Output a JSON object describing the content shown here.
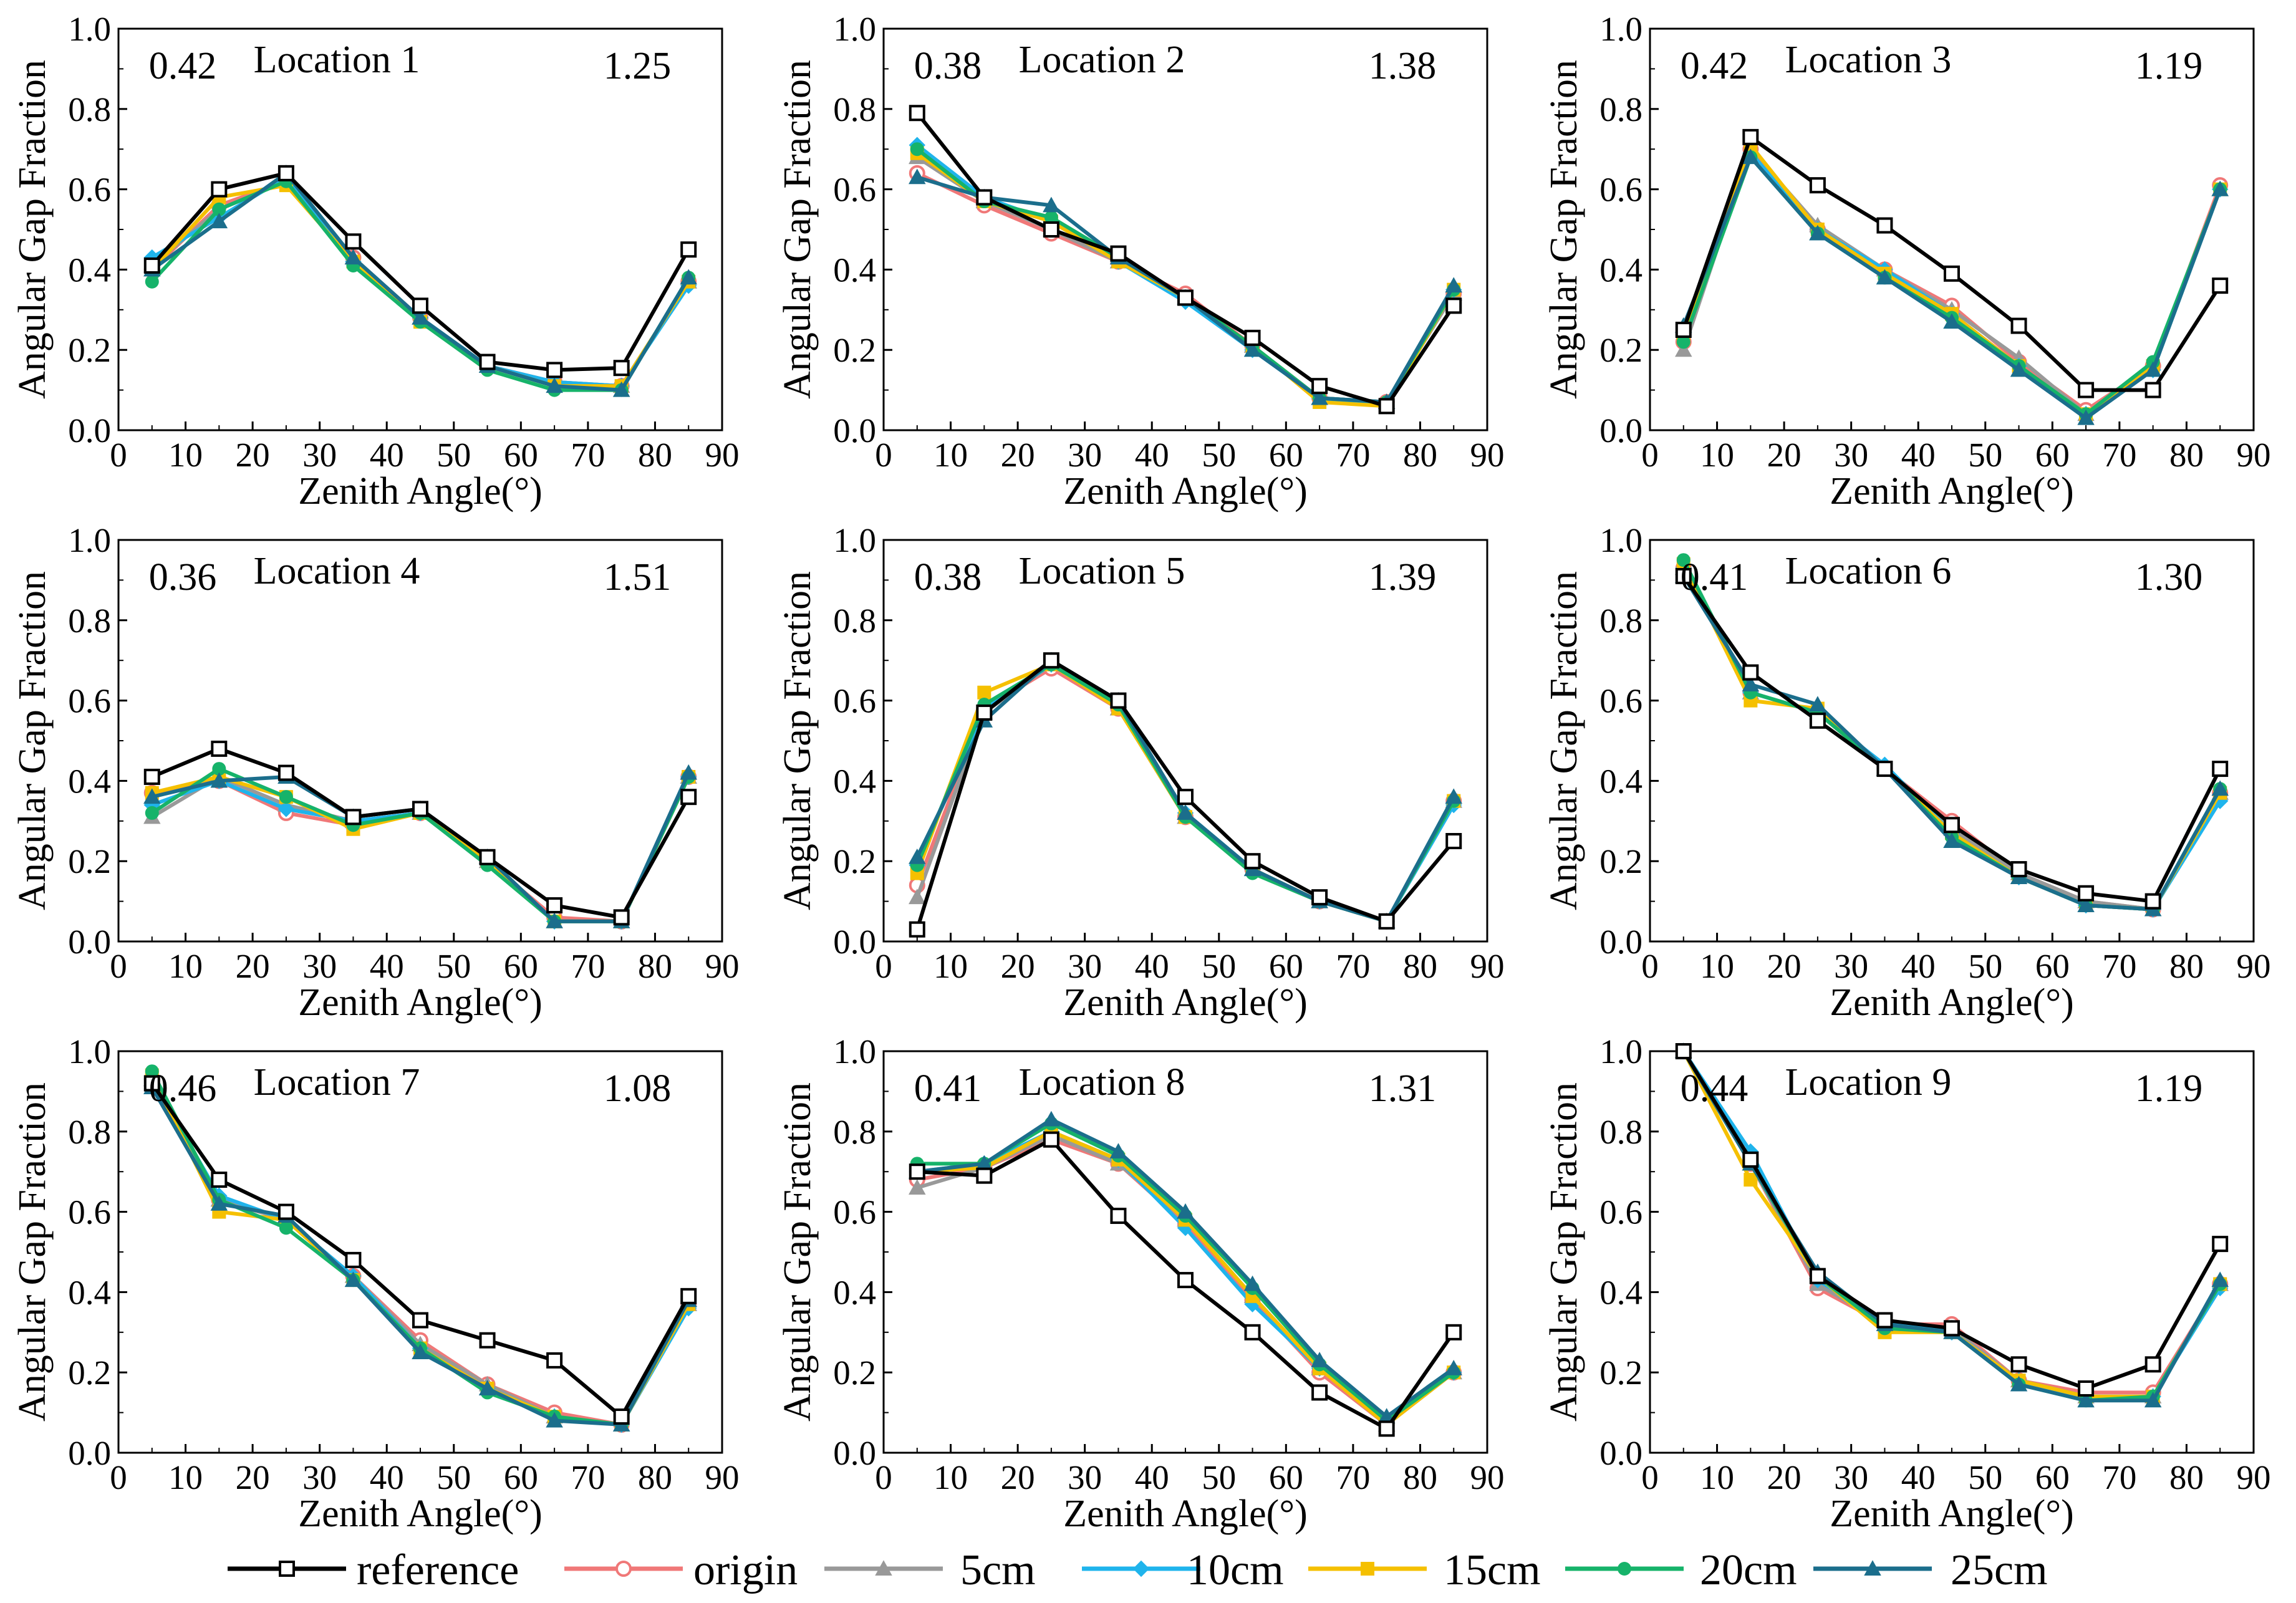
{
  "chart_data": {
    "type": "line",
    "x": [
      5,
      15,
      25,
      35,
      45,
      55,
      65,
      75,
      85
    ],
    "xlabel": "Zenith Angle(°)",
    "ylabel": "Angular Gap Fraction",
    "xlim": [
      0,
      90
    ],
    "ylim": [
      0,
      1.0
    ],
    "x_ticks": [
      "0",
      "10",
      "20",
      "30",
      "40",
      "50",
      "60",
      "70",
      "80",
      "90"
    ],
    "y_ticks": [
      "0.0",
      "0.2",
      "0.4",
      "0.6",
      "0.8",
      "1.0"
    ],
    "legend_position": "bottom",
    "series_styles": [
      {
        "name": "reference",
        "color": "#000000",
        "marker": "square-open"
      },
      {
        "name": "origin",
        "color": "#f07878",
        "marker": "circle-open"
      },
      {
        "name": "5cm",
        "color": "#999999",
        "marker": "triangle"
      },
      {
        "name": "10cm",
        "color": "#1fb4ec",
        "marker": "diamond"
      },
      {
        "name": "15cm",
        "color": "#f5c000",
        "marker": "square"
      },
      {
        "name": "20cm",
        "color": "#16b36a",
        "marker": "circle"
      },
      {
        "name": "25cm",
        "color": "#1b6e8c",
        "marker": "triangle"
      }
    ],
    "panels": [
      {
        "title": "Location 1",
        "left_value": "0.42",
        "right_value": "1.25",
        "series": [
          {
            "name": "reference",
            "values": [
              0.41,
              0.6,
              0.64,
              0.47,
              0.31,
              0.17,
              0.15,
              0.155,
              0.45
            ]
          },
          {
            "name": "origin",
            "values": [
              0.4,
              0.56,
              0.62,
              0.43,
              0.28,
              0.16,
              0.12,
              0.11,
              0.37
            ]
          },
          {
            "name": "5cm",
            "values": [
              0.41,
              0.55,
              0.62,
              0.43,
              0.28,
              0.16,
              0.12,
              0.11,
              0.37
            ]
          },
          {
            "name": "10cm",
            "values": [
              0.43,
              0.53,
              0.63,
              0.42,
              0.28,
              0.16,
              0.12,
              0.11,
              0.36
            ]
          },
          {
            "name": "15cm",
            "values": [
              0.4,
              0.58,
              0.61,
              0.42,
              0.27,
              0.16,
              0.11,
              0.11,
              0.37
            ]
          },
          {
            "name": "20cm",
            "values": [
              0.37,
              0.55,
              0.62,
              0.41,
              0.27,
              0.15,
              0.1,
              0.1,
              0.38
            ]
          },
          {
            "name": "25cm",
            "values": [
              0.4,
              0.52,
              0.64,
              0.43,
              0.28,
              0.16,
              0.11,
              0.1,
              0.38
            ]
          }
        ]
      },
      {
        "title": "Location 2",
        "left_value": "0.38",
        "right_value": "1.38",
        "series": [
          {
            "name": "reference",
            "values": [
              0.79,
              0.58,
              0.5,
              0.44,
              0.33,
              0.23,
              0.11,
              0.06,
              0.31
            ]
          },
          {
            "name": "origin",
            "values": [
              0.64,
              0.56,
              0.49,
              0.42,
              0.34,
              0.21,
              0.08,
              0.07,
              0.34
            ]
          },
          {
            "name": "5cm",
            "values": [
              0.68,
              0.57,
              0.5,
              0.42,
              0.33,
              0.21,
              0.08,
              0.07,
              0.34
            ]
          },
          {
            "name": "10cm",
            "values": [
              0.71,
              0.58,
              0.52,
              0.42,
              0.32,
              0.2,
              0.08,
              0.06,
              0.35
            ]
          },
          {
            "name": "15cm",
            "values": [
              0.69,
              0.57,
              0.52,
              0.42,
              0.33,
              0.21,
              0.07,
              0.06,
              0.35
            ]
          },
          {
            "name": "20cm",
            "values": [
              0.7,
              0.57,
              0.53,
              0.43,
              0.33,
              0.21,
              0.08,
              0.07,
              0.35
            ]
          },
          {
            "name": "25cm",
            "values": [
              0.63,
              0.58,
              0.56,
              0.43,
              0.33,
              0.2,
              0.08,
              0.07,
              0.36
            ]
          }
        ]
      },
      {
        "title": "Location 3",
        "left_value": "0.42",
        "right_value": "1.19",
        "series": [
          {
            "name": "reference",
            "values": [
              0.25,
              0.73,
              0.61,
              0.51,
              0.39,
              0.26,
              0.1,
              0.1,
              0.36
            ]
          },
          {
            "name": "origin",
            "values": [
              0.22,
              0.7,
              0.5,
              0.4,
              0.31,
              0.17,
              0.05,
              0.16,
              0.61
            ]
          },
          {
            "name": "5cm",
            "values": [
              0.2,
              0.7,
              0.51,
              0.4,
              0.3,
              0.18,
              0.04,
              0.15,
              0.6
            ]
          },
          {
            "name": "10cm",
            "values": [
              0.24,
              0.69,
              0.5,
              0.4,
              0.29,
              0.16,
              0.04,
              0.15,
              0.6
            ]
          },
          {
            "name": "15cm",
            "values": [
              0.23,
              0.71,
              0.5,
              0.39,
              0.29,
              0.16,
              0.04,
              0.16,
              0.6
            ]
          },
          {
            "name": "20cm",
            "values": [
              0.22,
              0.68,
              0.49,
              0.38,
              0.28,
              0.16,
              0.04,
              0.17,
              0.6
            ]
          },
          {
            "name": "25cm",
            "values": [
              0.26,
              0.68,
              0.49,
              0.38,
              0.27,
              0.15,
              0.03,
              0.15,
              0.6
            ]
          }
        ]
      },
      {
        "title": "Location 4",
        "left_value": "0.36",
        "right_value": "1.51",
        "series": [
          {
            "name": "reference",
            "values": [
              0.41,
              0.48,
              0.42,
              0.31,
              0.33,
              0.21,
              0.09,
              0.06,
              0.36
            ]
          },
          {
            "name": "origin",
            "values": [
              0.37,
              0.4,
              0.32,
              0.29,
              0.32,
              0.2,
              0.06,
              0.05,
              0.41
            ]
          },
          {
            "name": "5cm",
            "values": [
              0.31,
              0.41,
              0.34,
              0.3,
              0.32,
              0.2,
              0.05,
              0.05,
              0.41
            ]
          },
          {
            "name": "10cm",
            "values": [
              0.34,
              0.4,
              0.33,
              0.3,
              0.32,
              0.2,
              0.05,
              0.05,
              0.41
            ]
          },
          {
            "name": "15cm",
            "values": [
              0.37,
              0.41,
              0.36,
              0.28,
              0.32,
              0.2,
              0.05,
              0.05,
              0.41
            ]
          },
          {
            "name": "20cm",
            "values": [
              0.32,
              0.43,
              0.36,
              0.29,
              0.32,
              0.19,
              0.05,
              0.05,
              0.41
            ]
          },
          {
            "name": "25cm",
            "values": [
              0.36,
              0.4,
              0.41,
              0.31,
              0.33,
              0.21,
              0.05,
              0.05,
              0.42
            ]
          }
        ]
      },
      {
        "title": "Location 5",
        "left_value": "0.38",
        "right_value": "1.39",
        "series": [
          {
            "name": "reference",
            "values": [
              0.03,
              0.57,
              0.7,
              0.6,
              0.36,
              0.2,
              0.11,
              0.05,
              0.25
            ]
          },
          {
            "name": "origin",
            "values": [
              0.14,
              0.58,
              0.68,
              0.58,
              0.31,
              0.18,
              0.1,
              0.05,
              0.35
            ]
          },
          {
            "name": "5cm",
            "values": [
              0.11,
              0.57,
              0.69,
              0.58,
              0.31,
              0.18,
              0.1,
              0.05,
              0.35
            ]
          },
          {
            "name": "10cm",
            "values": [
              0.19,
              0.58,
              0.69,
              0.59,
              0.32,
              0.18,
              0.1,
              0.05,
              0.34
            ]
          },
          {
            "name": "15cm",
            "values": [
              0.17,
              0.62,
              0.69,
              0.58,
              0.31,
              0.18,
              0.1,
              0.05,
              0.35
            ]
          },
          {
            "name": "20cm",
            "values": [
              0.19,
              0.59,
              0.69,
              0.59,
              0.31,
              0.17,
              0.1,
              0.05,
              0.35
            ]
          },
          {
            "name": "25cm",
            "values": [
              0.21,
              0.55,
              0.7,
              0.6,
              0.32,
              0.18,
              0.1,
              0.05,
              0.36
            ]
          }
        ]
      },
      {
        "title": "Location 6",
        "left_value": "0.41",
        "right_value": "1.30",
        "series": [
          {
            "name": "reference",
            "values": [
              0.91,
              0.67,
              0.55,
              0.43,
              0.29,
              0.18,
              0.12,
              0.1,
              0.43
            ]
          },
          {
            "name": "origin",
            "values": [
              0.93,
              0.62,
              0.57,
              0.43,
              0.3,
              0.17,
              0.1,
              0.08,
              0.37
            ]
          },
          {
            "name": "5cm",
            "values": [
              0.93,
              0.62,
              0.57,
              0.43,
              0.28,
              0.17,
              0.1,
              0.08,
              0.37
            ]
          },
          {
            "name": "10cm",
            "values": [
              0.93,
              0.62,
              0.57,
              0.44,
              0.27,
              0.16,
              0.09,
              0.08,
              0.35
            ]
          },
          {
            "name": "15cm",
            "values": [
              0.94,
              0.6,
              0.58,
              0.43,
              0.27,
              0.16,
              0.09,
              0.08,
              0.37
            ]
          },
          {
            "name": "20cm",
            "values": [
              0.95,
              0.62,
              0.57,
              0.43,
              0.26,
              0.16,
              0.09,
              0.08,
              0.38
            ]
          },
          {
            "name": "25cm",
            "values": [
              0.91,
              0.64,
              0.59,
              0.43,
              0.25,
              0.16,
              0.09,
              0.08,
              0.38
            ]
          }
        ]
      },
      {
        "title": "Location 7",
        "left_value": "0.46",
        "right_value": "1.08",
        "series": [
          {
            "name": "reference",
            "values": [
              0.92,
              0.68,
              0.6,
              0.48,
              0.33,
              0.28,
              0.23,
              0.09,
              0.39
            ]
          },
          {
            "name": "origin",
            "values": [
              0.93,
              0.63,
              0.58,
              0.44,
              0.28,
              0.17,
              0.1,
              0.07,
              0.37
            ]
          },
          {
            "name": "5cm",
            "values": [
              0.93,
              0.63,
              0.58,
              0.44,
              0.27,
              0.17,
              0.09,
              0.07,
              0.37
            ]
          },
          {
            "name": "10cm",
            "values": [
              0.93,
              0.64,
              0.58,
              0.44,
              0.26,
              0.16,
              0.09,
              0.07,
              0.36
            ]
          },
          {
            "name": "15cm",
            "values": [
              0.94,
              0.6,
              0.58,
              0.43,
              0.26,
              0.16,
              0.09,
              0.07,
              0.37
            ]
          },
          {
            "name": "20cm",
            "values": [
              0.95,
              0.63,
              0.56,
              0.43,
              0.26,
              0.15,
              0.09,
              0.07,
              0.38
            ]
          },
          {
            "name": "25cm",
            "values": [
              0.91,
              0.62,
              0.59,
              0.43,
              0.25,
              0.16,
              0.08,
              0.07,
              0.38
            ]
          }
        ]
      },
      {
        "title": "Location 8",
        "left_value": "0.41",
        "right_value": "1.31",
        "series": [
          {
            "name": "reference",
            "values": [
              0.7,
              0.69,
              0.78,
              0.59,
              0.43,
              0.3,
              0.15,
              0.06,
              0.3
            ]
          },
          {
            "name": "origin",
            "values": [
              0.68,
              0.71,
              0.78,
              0.72,
              0.57,
              0.38,
              0.2,
              0.07,
              0.2
            ]
          },
          {
            "name": "5cm",
            "values": [
              0.66,
              0.71,
              0.79,
              0.72,
              0.58,
              0.39,
              0.21,
              0.07,
              0.2
            ]
          },
          {
            "name": "10cm",
            "values": [
              0.7,
              0.72,
              0.8,
              0.73,
              0.56,
              0.37,
              0.21,
              0.08,
              0.2
            ]
          },
          {
            "name": "15cm",
            "values": [
              0.7,
              0.71,
              0.8,
              0.73,
              0.58,
              0.39,
              0.21,
              0.07,
              0.2
            ]
          },
          {
            "name": "20cm",
            "values": [
              0.72,
              0.72,
              0.82,
              0.74,
              0.59,
              0.41,
              0.22,
              0.08,
              0.2
            ]
          },
          {
            "name": "25cm",
            "values": [
              0.7,
              0.72,
              0.83,
              0.75,
              0.6,
              0.42,
              0.23,
              0.09,
              0.21
            ]
          }
        ]
      },
      {
        "title": "Location 9",
        "left_value": "0.44",
        "right_value": "1.19",
        "series": [
          {
            "name": "reference",
            "values": [
              1.0,
              0.73,
              0.44,
              0.33,
              0.31,
              0.22,
              0.16,
              0.22,
              0.52
            ]
          },
          {
            "name": "origin",
            "values": [
              1.0,
              0.72,
              0.41,
              0.32,
              0.32,
              0.18,
              0.15,
              0.15,
              0.42
            ]
          },
          {
            "name": "5cm",
            "values": [
              1.0,
              0.72,
              0.42,
              0.32,
              0.31,
              0.18,
              0.14,
              0.14,
              0.42
            ]
          },
          {
            "name": "10cm",
            "values": [
              1.0,
              0.75,
              0.43,
              0.33,
              0.3,
              0.18,
              0.14,
              0.14,
              0.41
            ]
          },
          {
            "name": "15cm",
            "values": [
              1.0,
              0.68,
              0.44,
              0.3,
              0.3,
              0.18,
              0.14,
              0.14,
              0.42
            ]
          },
          {
            "name": "20cm",
            "values": [
              1.0,
              0.72,
              0.44,
              0.31,
              0.3,
              0.17,
              0.13,
              0.14,
              0.42
            ]
          },
          {
            "name": "25cm",
            "values": [
              1.0,
              0.72,
              0.45,
              0.32,
              0.3,
              0.17,
              0.13,
              0.13,
              0.43
            ]
          }
        ]
      }
    ]
  }
}
